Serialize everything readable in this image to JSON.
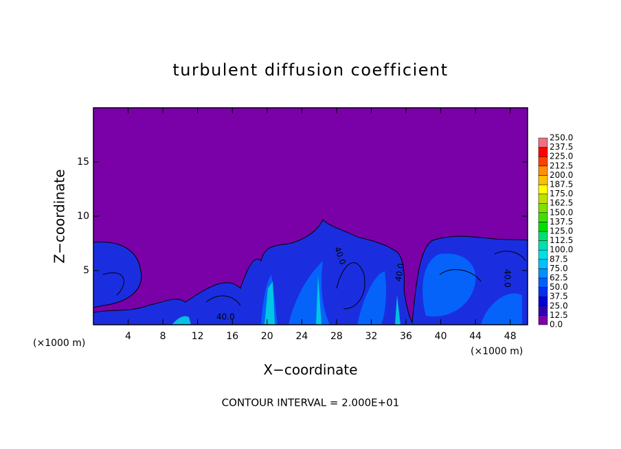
{
  "chart_data": {
    "type": "contour",
    "title": "turbulent diffusion coefficient",
    "xlabel": "X−coordinate",
    "ylabel": "Z−coordinate",
    "x_unit": "(×1000 m)",
    "y_unit": "(×1000 m)",
    "annotation": "CONTOUR INTERVAL = 2.000E+01",
    "contour_labels": [
      "40.0",
      "40.0",
      "40.0",
      "40.0"
    ],
    "xlim": [
      0,
      50
    ],
    "xticks": [
      4,
      8,
      12,
      16,
      20,
      24,
      28,
      32,
      36,
      40,
      44,
      48
    ],
    "ylim": [
      0,
      20
    ],
    "yticks": [
      5,
      10,
      15
    ],
    "colorbar_lim": [
      0,
      250
    ],
    "colorbar_ticks": [
      {
        "value": 0,
        "label": "0.0"
      },
      12.5,
      {
        "value": 25,
        "label": "25.0"
      },
      37.5,
      {
        "value": 50,
        "label": "50.0"
      },
      62.5,
      {
        "value": 75,
        "label": "75.0"
      },
      87.5,
      {
        "value": 100,
        "label": "100.0"
      },
      112.5,
      {
        "value": 125,
        "label": "125.0"
      },
      137.5,
      {
        "value": 150,
        "label": "150.0"
      },
      162.5,
      {
        "value": 175,
        "label": "175.0"
      },
      187.5,
      {
        "value": 200,
        "label": "200.0"
      },
      212.5,
      {
        "value": 225,
        "label": "225.0"
      },
      237.5,
      {
        "value": 250,
        "label": "250.0"
      }
    ],
    "colors": [
      "#7a00a8",
      "#3000b8",
      "#0000d8",
      "#0030f0",
      "#0060ff",
      "#0090ff",
      "#00c0ff",
      "#00e0e8",
      "#00e0b0",
      "#00e070",
      "#00e000",
      "#40e000",
      "#80e000",
      "#c0e000",
      "#ffff00",
      "#ffc000",
      "#ff9000",
      "#ff4000",
      "#ff0000",
      "#f07080"
    ]
  }
}
